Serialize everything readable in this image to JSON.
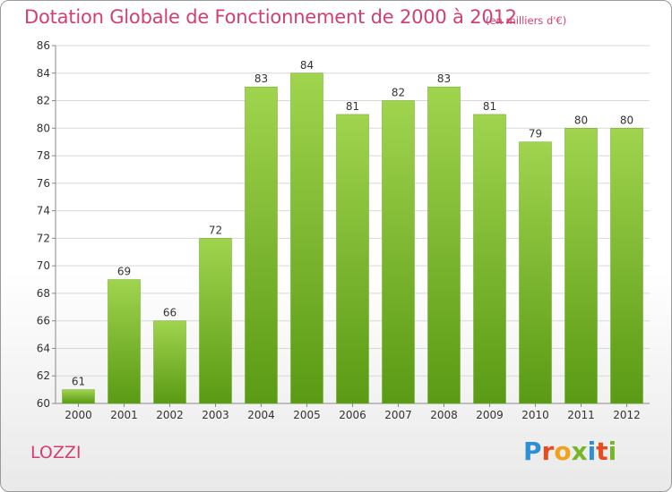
{
  "title": "Dotation Globale de Fonctionnement de 2000 à 2012",
  "subtitle": "(en milliers d'€)",
  "commune": "LOZZI",
  "brand": {
    "letters": [
      "P",
      "r",
      "o",
      "x",
      "i",
      "t",
      "i"
    ],
    "colors": [
      "#2d8fd6",
      "#e84b1c",
      "#f2a11a",
      "#79b52a",
      "#2d8fd6",
      "#e84b1c",
      "#79b52a"
    ]
  },
  "colors": {
    "bar_top": "#a0d44e",
    "bar_bottom": "#5a9a14",
    "title": "#d23f72"
  },
  "chart_data": {
    "type": "bar",
    "categories": [
      "2000",
      "2001",
      "2002",
      "2003",
      "2004",
      "2005",
      "2006",
      "2007",
      "2008",
      "2009",
      "2010",
      "2011",
      "2012"
    ],
    "values": [
      61,
      69,
      66,
      72,
      83,
      84,
      81,
      82,
      83,
      81,
      79,
      80,
      80
    ],
    "ylim": [
      60,
      86
    ],
    "yticks": [
      60,
      62,
      64,
      66,
      68,
      70,
      72,
      74,
      76,
      78,
      80,
      82,
      84,
      86
    ],
    "grid": true
  }
}
